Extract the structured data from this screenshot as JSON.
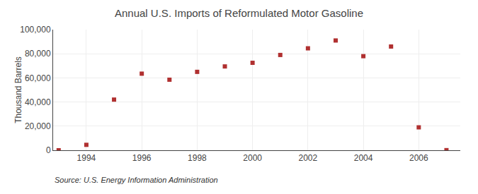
{
  "chart_data": {
    "type": "scatter",
    "title": "Annual U.S. Imports of Reformulated Motor Gasoline",
    "ylabel": "Thousand Barrels",
    "annotations": [
      "Source: U.S. Energy Information Administration"
    ],
    "x": [
      1993,
      1994,
      1995,
      1996,
      1997,
      1998,
      1999,
      2000,
      2001,
      2002,
      2003,
      2004,
      2005,
      2006,
      2007
    ],
    "values": [
      0,
      4500,
      42000,
      63500,
      58500,
      65000,
      69500,
      72500,
      79000,
      84500,
      91000,
      78000,
      86000,
      19000,
      100
    ],
    "color": "#b03030",
    "marker": "square",
    "xlim": [
      1992.8,
      2007.5
    ],
    "xticks": [
      1994,
      1996,
      1998,
      2000,
      2002,
      2004,
      2006
    ],
    "ylim": [
      0,
      100000
    ],
    "yticks": [
      0,
      {
        "value": 20000,
        "label": "20,000"
      },
      {
        "value": 40000,
        "label": "40,000"
      },
      {
        "value": 60000,
        "label": "60,000"
      },
      {
        "value": 80000,
        "label": "80,000"
      },
      {
        "value": 100000,
        "label": "100,000"
      }
    ],
    "grid": true
  }
}
